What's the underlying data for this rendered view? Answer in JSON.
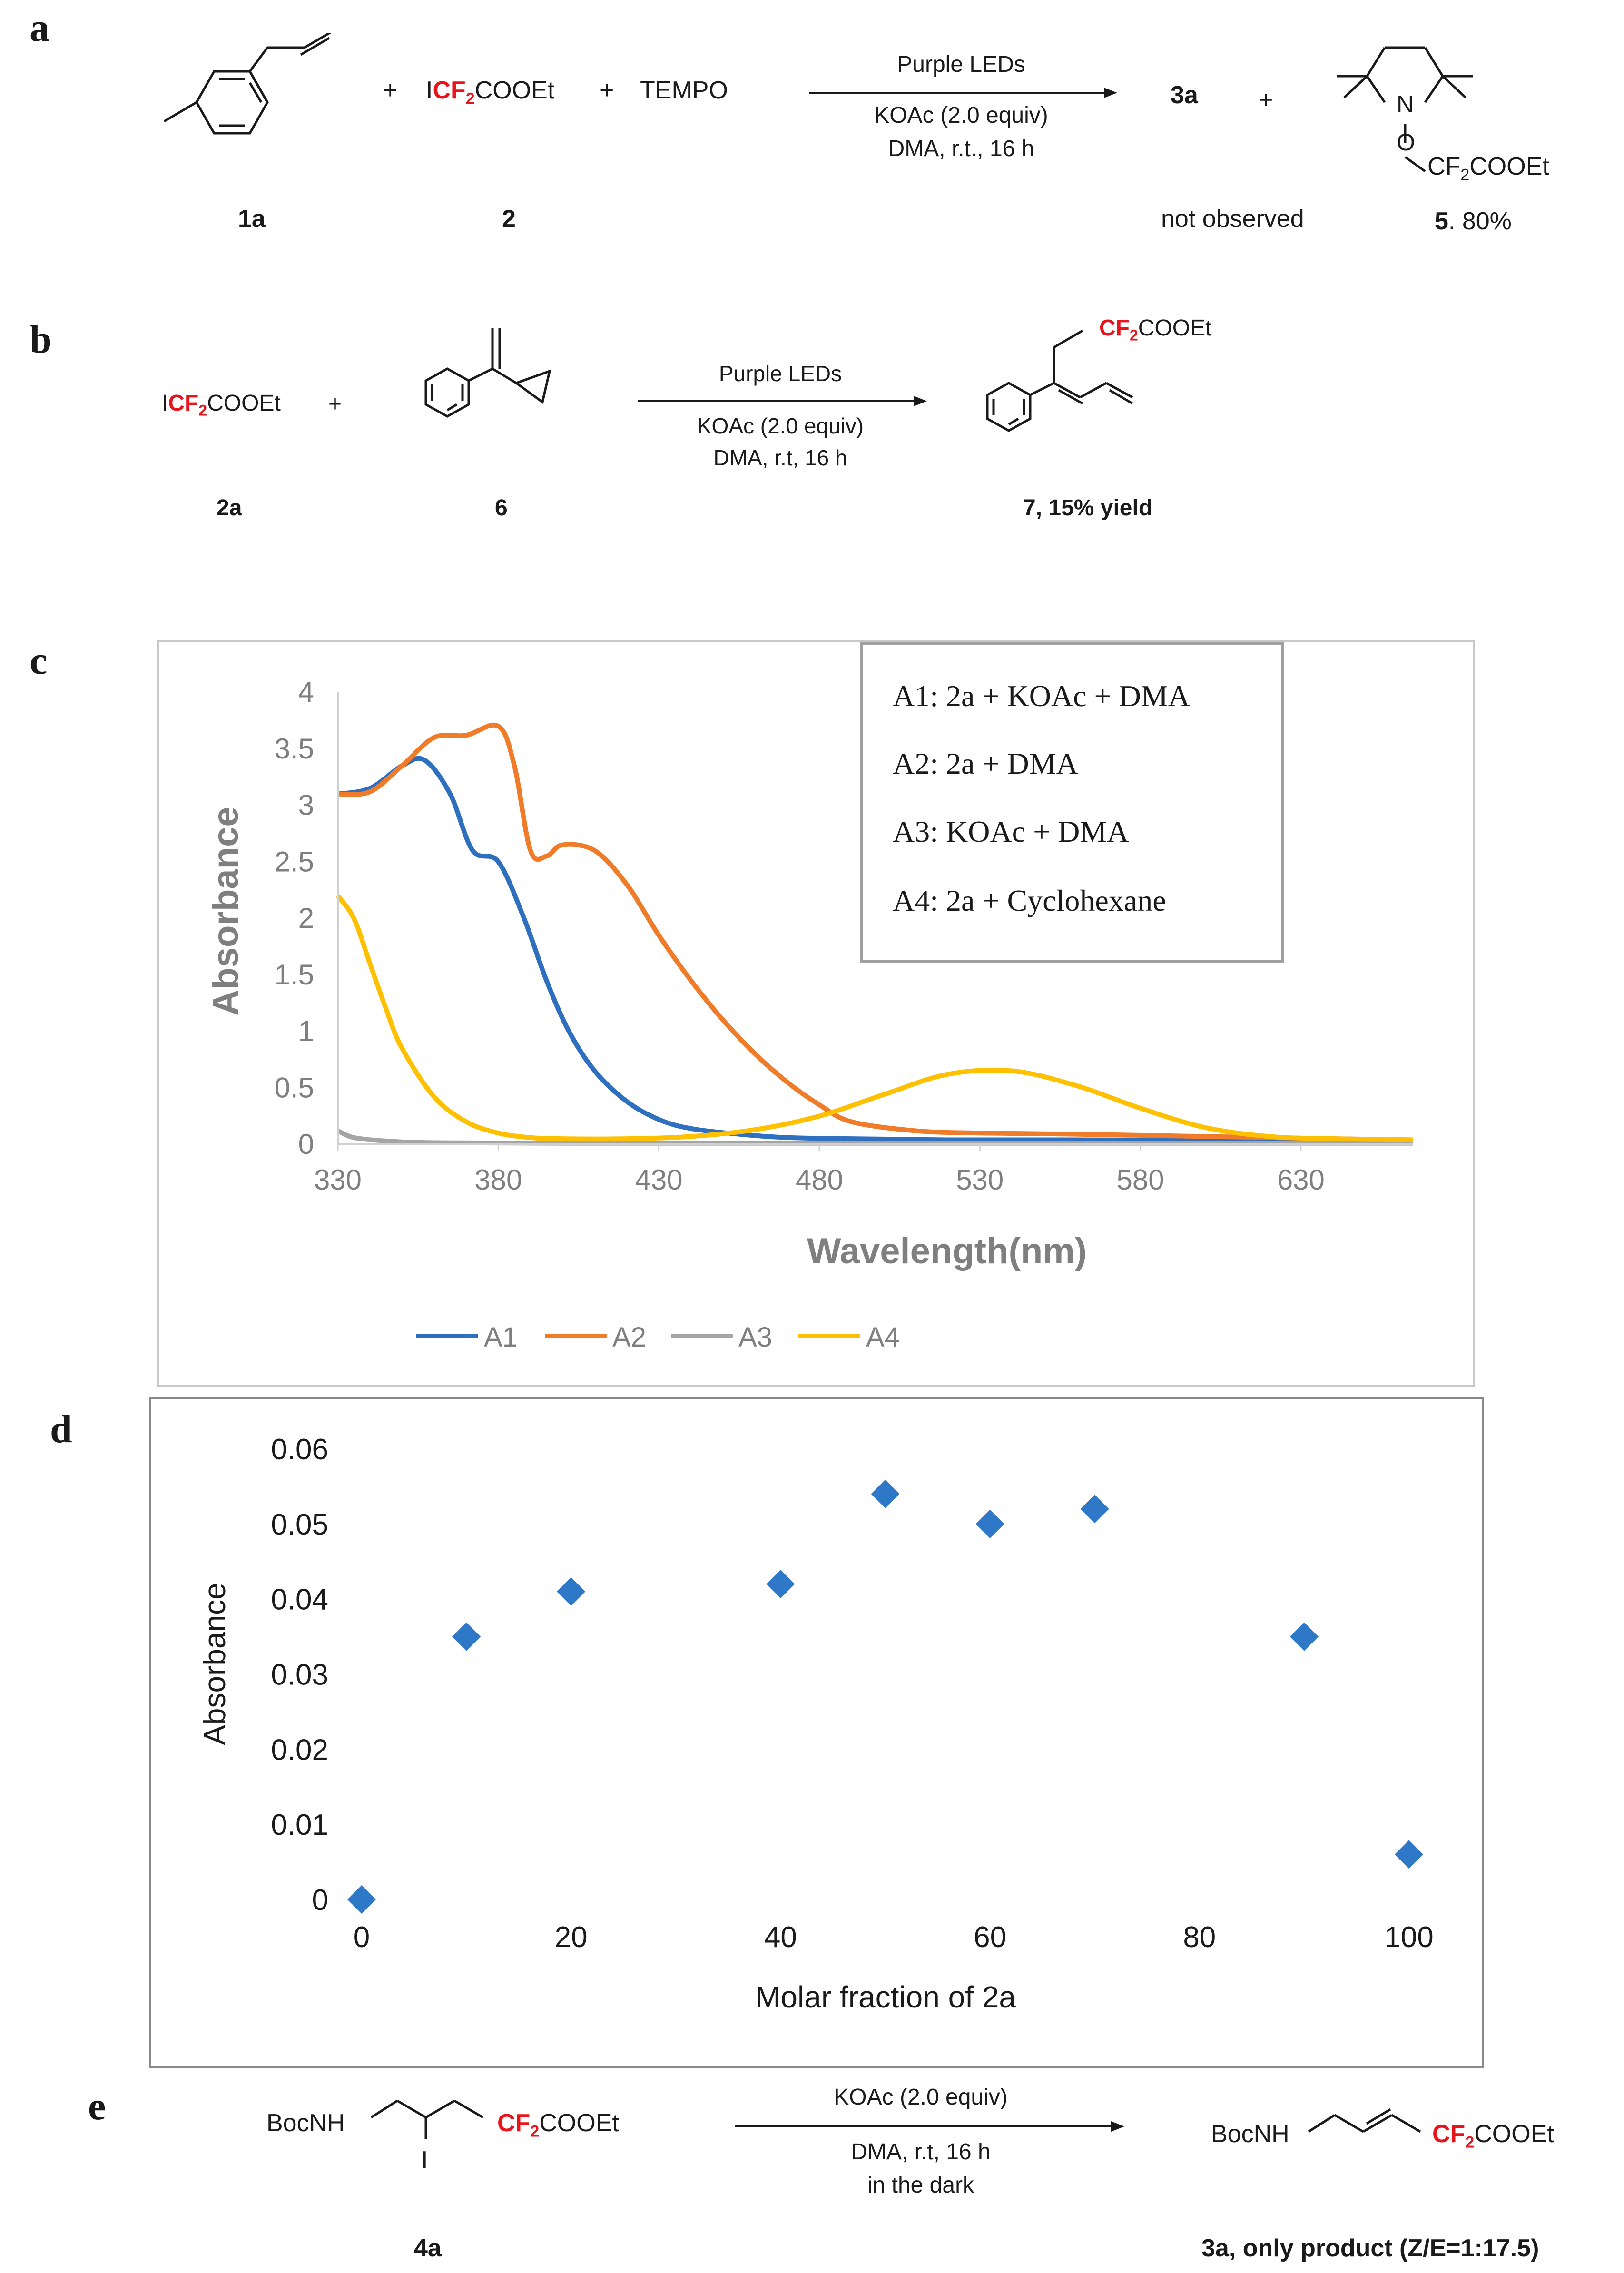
{
  "panels": {
    "a": {
      "letter": "a",
      "plus1": "+",
      "reagent_I": "I",
      "reagent_cf": "CF",
      "reagent_sub": "2",
      "reagent_rest": "COOEt",
      "plus2": "+",
      "tempo": "TEMPO",
      "cond_top": "Purple LEDs",
      "cond_mid": "KOAc (2.0 equiv)",
      "cond_bot": "DMA, r.t., 16 h",
      "product": "3a",
      "plus3": "+",
      "adduct_O": "O",
      "adduct_N": "N",
      "adduct_cf": "CF",
      "adduct_sub": "2",
      "adduct_rest": "COOEt",
      "label_1a": "1a",
      "label_2": "2",
      "not_observed": "not observed",
      "label_5": "5",
      "yield_5": ". 80%"
    },
    "b": {
      "letter": "b",
      "reagent_I": "I",
      "reagent_cf": "CF",
      "reagent_sub": "2",
      "reagent_rest": "COOEt",
      "plus": "+",
      "cond_top": "Purple LEDs",
      "cond_mid": "KOAc (2.0 equiv)",
      "cond_bot": "DMA, r.t, 16 h",
      "prod_cf": "CF",
      "prod_sub": "2",
      "prod_rest": "COOEt",
      "label_2a": "2a",
      "label_6": "6",
      "label_7": "7, 15% yield"
    },
    "c": {
      "letter": "c"
    },
    "d": {
      "letter": "d"
    },
    "e": {
      "letter": "e",
      "sm_boc": "BocNH",
      "sm_I": "I",
      "sm_cf": "CF",
      "sm_sub": "2",
      "sm_rest": "COOEt",
      "cond_top": "KOAc (2.0 equiv)",
      "cond_mid": "DMA, r.t, 16 h",
      "cond_bot": "in the dark",
      "prod_boc": "BocNH",
      "prod_cf": "CF",
      "prod_sub": "2",
      "prod_rest": "COOEt",
      "label_4a": "4a",
      "label_3a": "3a, only product (Z/E=1:17.5)"
    }
  },
  "colors": {
    "red": "#e8141c",
    "A1": "#2e6fbf",
    "A2": "#f07c2a",
    "A3": "#a5a5a5",
    "A4": "#ffc000",
    "marker": "#2f78c8"
  },
  "chart_data": [
    {
      "type": "line",
      "xlabel": "Wavelength(nm)",
      "ylabel": "Absorbance",
      "xlim": [
        330,
        665
      ],
      "ylim": [
        0,
        4
      ],
      "xticks": [
        330,
        380,
        430,
        480,
        530,
        580,
        630
      ],
      "yticks": [
        0,
        0.5,
        1,
        1.5,
        2,
        2.5,
        3,
        3.5,
        4
      ],
      "legend_box": [
        "A1: 2a + KOAc + DMA",
        "A2: 2a + DMA",
        "A3: KOAc + DMA",
        "A4: 2a + Cyclohexane"
      ],
      "legend_placement": "bottom",
      "series": [
        {
          "name": "A1",
          "x": [
            330,
            340,
            350,
            357,
            365,
            372,
            380,
            388,
            395,
            402,
            410,
            420,
            430,
            440,
            455,
            470,
            490,
            520,
            560,
            600,
            630,
            665
          ],
          "y": [
            3.1,
            3.15,
            3.35,
            3.4,
            3.1,
            2.6,
            2.5,
            2.0,
            1.45,
            1.0,
            0.65,
            0.38,
            0.22,
            0.14,
            0.09,
            0.06,
            0.05,
            0.04,
            0.04,
            0.035,
            0.03,
            0.03
          ]
        },
        {
          "name": "A2",
          "x": [
            330,
            340,
            350,
            360,
            370,
            380,
            385,
            390,
            395,
            400,
            410,
            420,
            430,
            440,
            450,
            460,
            470,
            480,
            490,
            510,
            530,
            560,
            600,
            640,
            665
          ],
          "y": [
            3.1,
            3.12,
            3.35,
            3.6,
            3.62,
            3.7,
            3.35,
            2.6,
            2.55,
            2.65,
            2.6,
            2.3,
            1.85,
            1.45,
            1.1,
            0.8,
            0.55,
            0.35,
            0.2,
            0.12,
            0.1,
            0.09,
            0.07,
            0.05,
            0.04
          ]
        },
        {
          "name": "A3",
          "x": [
            330,
            335,
            345,
            360,
            400,
            500,
            600,
            665
          ],
          "y": [
            0.12,
            0.06,
            0.03,
            0.015,
            0.01,
            0.01,
            0.01,
            0.01
          ]
        },
        {
          "name": "A4",
          "x": [
            330,
            335,
            340,
            345,
            350,
            360,
            370,
            380,
            390,
            400,
            420,
            440,
            460,
            480,
            500,
            520,
            540,
            560,
            580,
            600,
            620,
            640,
            665
          ],
          "y": [
            2.2,
            2.0,
            1.6,
            1.2,
            0.85,
            0.42,
            0.2,
            0.1,
            0.06,
            0.05,
            0.05,
            0.07,
            0.13,
            0.25,
            0.44,
            0.62,
            0.65,
            0.52,
            0.32,
            0.15,
            0.07,
            0.05,
            0.04
          ]
        }
      ]
    },
    {
      "type": "scatter",
      "xlabel": "Molar fraction of 2a",
      "ylabel": "Absorbance",
      "xlim": [
        0,
        100
      ],
      "ylim": [
        0,
        0.06
      ],
      "xticks": [
        0,
        20,
        40,
        60,
        80,
        100
      ],
      "yticks": [
        0,
        0.01,
        0.02,
        0.03,
        0.04,
        0.05,
        0.06
      ],
      "x": [
        0,
        10,
        20,
        40,
        50,
        60,
        70,
        90,
        100
      ],
      "y": [
        0,
        0.035,
        0.041,
        0.042,
        0.054,
        0.05,
        0.052,
        0.035,
        0.006
      ]
    }
  ]
}
